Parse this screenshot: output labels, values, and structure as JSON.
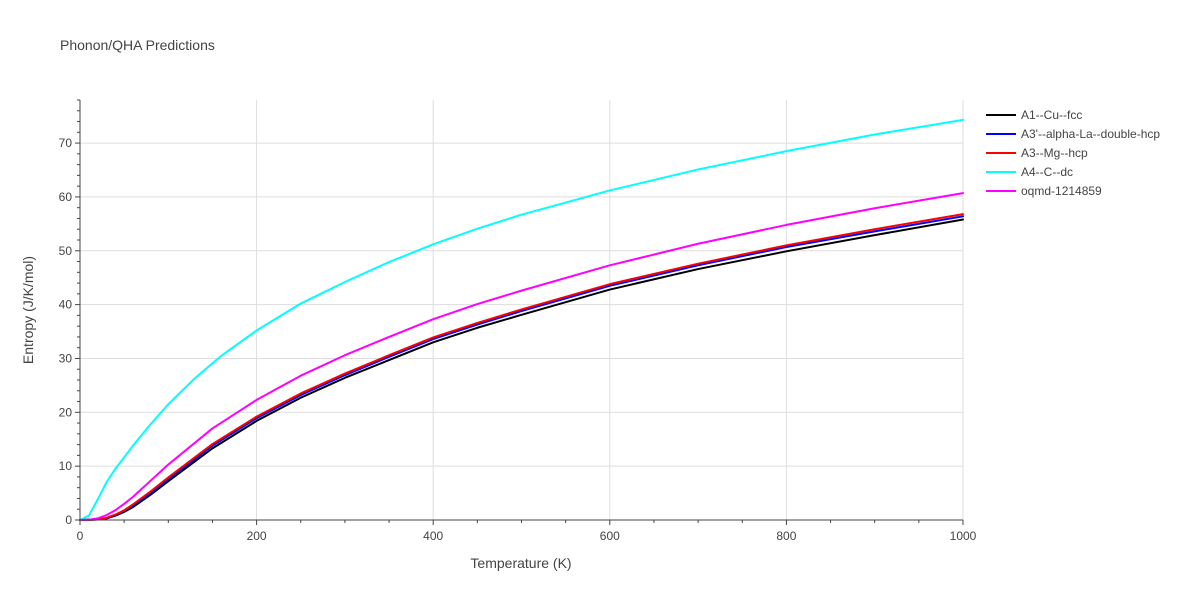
{
  "chart_data": {
    "type": "line",
    "title": "Phonon/QHA Predictions",
    "xlabel": "Temperature (K)",
    "ylabel": "Entropy (J/K/mol)",
    "xlim": [
      0,
      1000
    ],
    "ylim": [
      0,
      78
    ],
    "xticks": [
      0,
      200,
      400,
      600,
      800,
      1000
    ],
    "yticks": [
      0,
      10,
      20,
      30,
      40,
      50,
      60,
      70
    ],
    "grid": true,
    "legend_position": "top-right",
    "series": [
      {
        "name": "A1--Cu--fcc",
        "color": "#000000",
        "x": [
          0,
          20,
          30,
          40,
          50,
          60,
          80,
          100,
          150,
          200,
          250,
          300,
          350,
          400,
          450,
          500,
          600,
          700,
          800,
          900,
          1000
        ],
        "y": [
          0,
          0.1,
          0.3,
          0.8,
          1.5,
          2.4,
          4.7,
          7.2,
          13.3,
          18.4,
          22.7,
          26.4,
          29.7,
          33.0,
          35.7,
          38.1,
          42.8,
          46.6,
          49.9,
          52.9,
          55.8
        ]
      },
      {
        "name": "A3'--alpha-La--double-hcp",
        "color": "#0000ff",
        "x": [
          0,
          20,
          30,
          40,
          50,
          60,
          80,
          100,
          150,
          200,
          250,
          300,
          350,
          400,
          450,
          500,
          600,
          700,
          800,
          900,
          1000
        ],
        "y": [
          0,
          0.1,
          0.3,
          0.9,
          1.7,
          2.7,
          5.0,
          7.6,
          13.8,
          18.9,
          23.2,
          26.9,
          30.3,
          33.6,
          36.3,
          38.8,
          43.5,
          47.3,
          50.7,
          53.6,
          56.4
        ]
      },
      {
        "name": "A3--Mg--hcp",
        "color": "#ff0000",
        "x": [
          0,
          20,
          30,
          40,
          50,
          60,
          80,
          100,
          150,
          200,
          250,
          300,
          350,
          400,
          450,
          500,
          600,
          700,
          800,
          900,
          1000
        ],
        "y": [
          0,
          0.1,
          0.4,
          1.0,
          1.8,
          2.9,
          5.3,
          7.9,
          14.1,
          19.2,
          23.5,
          27.2,
          30.6,
          33.9,
          36.6,
          39.1,
          43.8,
          47.6,
          51.0,
          54.0,
          56.8
        ]
      },
      {
        "name": "A4--C--dc",
        "color": "#00ffff",
        "x": [
          0,
          10,
          20,
          30,
          40,
          60,
          80,
          100,
          130,
          160,
          200,
          250,
          300,
          350,
          400,
          450,
          500,
          600,
          700,
          800,
          900,
          1000
        ],
        "y": [
          0,
          0.8,
          3.8,
          7.0,
          9.5,
          13.8,
          17.8,
          21.5,
          26.3,
          30.5,
          35.2,
          40.2,
          44.2,
          47.9,
          51.2,
          54.1,
          56.7,
          61.2,
          65.1,
          68.5,
          71.6,
          74.3
        ]
      },
      {
        "name": "oqmd-1214859",
        "color": "#ff00ff",
        "x": [
          0,
          10,
          20,
          30,
          40,
          50,
          60,
          80,
          100,
          150,
          200,
          250,
          300,
          350,
          400,
          450,
          500,
          600,
          700,
          800,
          900,
          1000
        ],
        "y": [
          0,
          0.05,
          0.3,
          0.9,
          1.8,
          3.0,
          4.3,
          7.3,
          10.3,
          17.0,
          22.3,
          26.8,
          30.6,
          34.0,
          37.3,
          40.1,
          42.6,
          47.3,
          51.3,
          54.8,
          57.9,
          60.7
        ]
      }
    ]
  },
  "axis_color": "#444444",
  "grid_color": "#dddddd"
}
